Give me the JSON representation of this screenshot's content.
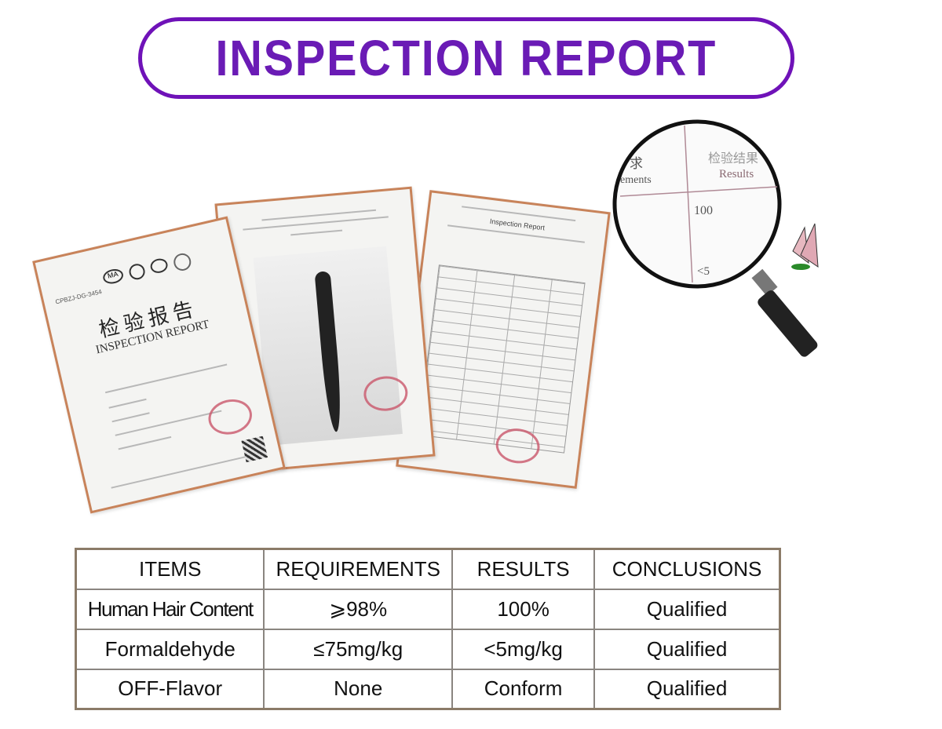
{
  "header": {
    "title": "INSPECTION REPORT"
  },
  "documents": {
    "cover": {
      "title_cn": "检验报告",
      "title_en": "INSPECTION REPORT",
      "code": "CPBZJ-DG-3454"
    },
    "third": {
      "title_en": "Inspection Report"
    }
  },
  "magnifier": {
    "col_left_cn": "求",
    "col_left_en": "ements",
    "col_right_cn": "检验结果",
    "col_right_en": "Results",
    "value_1": "100",
    "value_2": "<5"
  },
  "table": {
    "headers": [
      "ITEMS",
      "REQUIREMENTS",
      "RESULTS",
      "CONCLUSIONS"
    ],
    "rows": [
      [
        "Human Hair Content",
        "⩾98%",
        "100%",
        "Qualified"
      ],
      [
        "Formaldehyde",
        "≤75mg/kg",
        "<5mg/kg",
        "Qualified"
      ],
      [
        "OFF-Flavor",
        "None",
        "Conform",
        "Qualified"
      ]
    ]
  },
  "colors": {
    "accent": "#6f12b8",
    "doc_border": "#c8835a",
    "table_border": "#8b7b68"
  }
}
